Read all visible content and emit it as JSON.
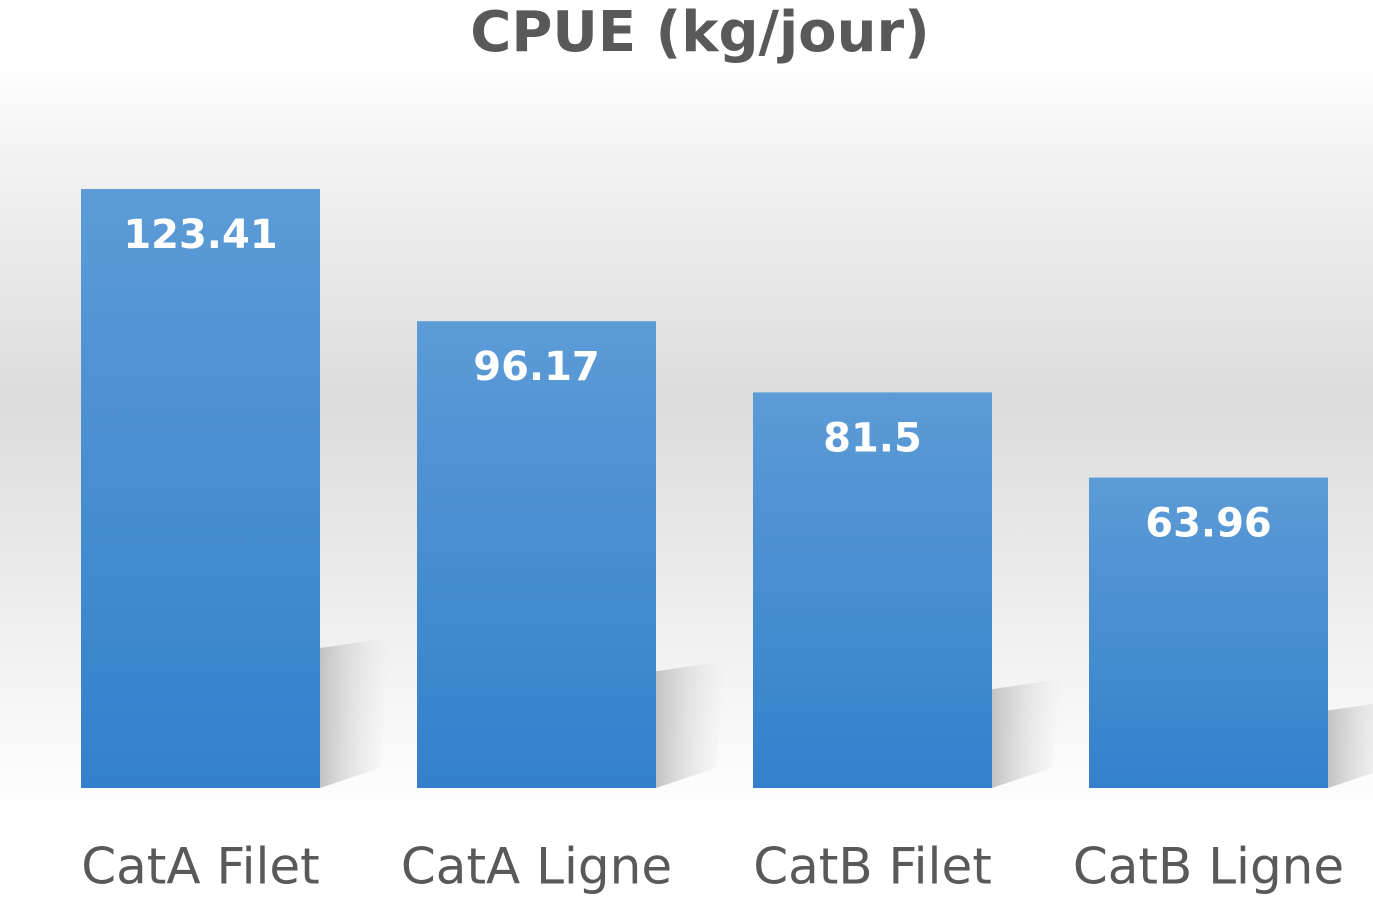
{
  "chart_data": {
    "type": "bar",
    "title": "CPUE (kg/jour)",
    "categories": [
      "CatA Filet",
      "CatA Ligne",
      "CatB Filet",
      "CatB Ligne"
    ],
    "values": [
      123.41,
      96.17,
      81.5,
      63.96
    ],
    "color": "#4a8fd6"
  }
}
